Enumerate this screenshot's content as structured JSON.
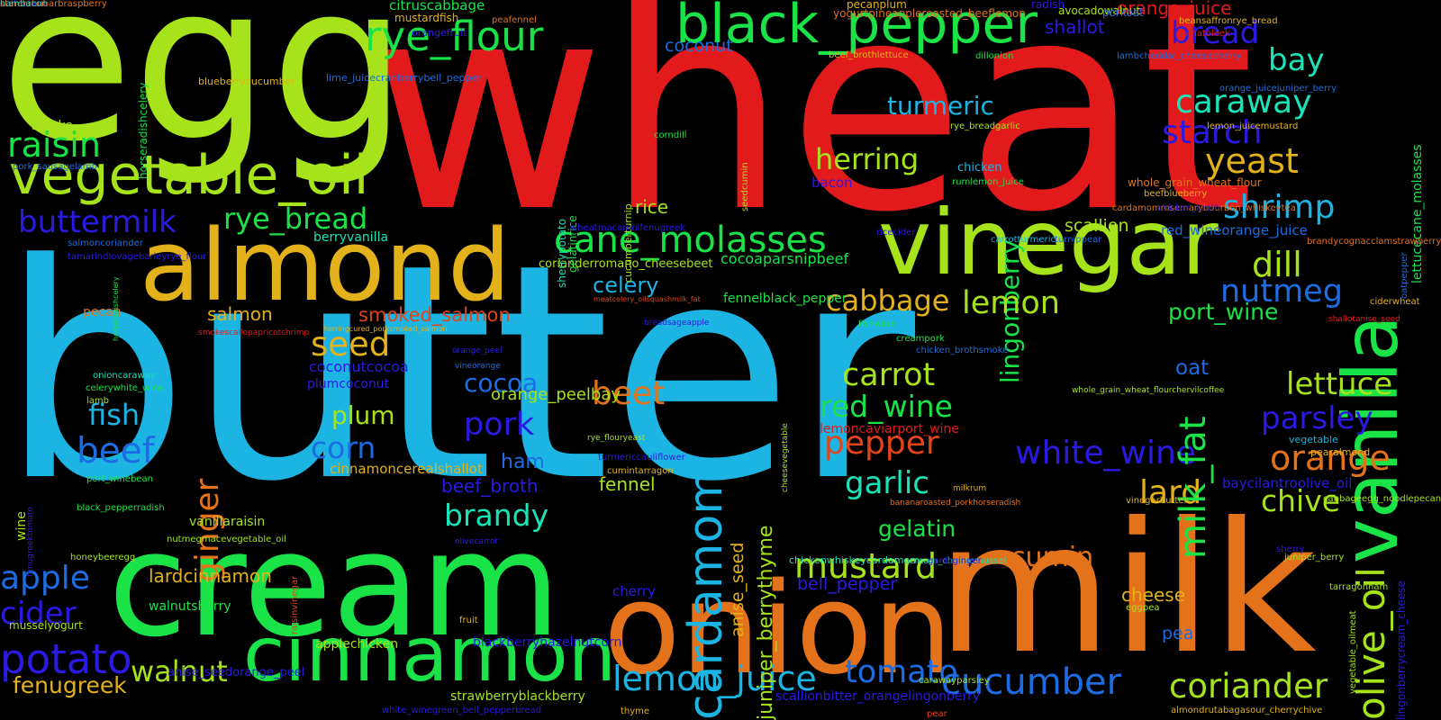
{
  "words": [
    {
      "text": "butter",
      "color": "#1cb4e3"
    },
    {
      "text": "wheat",
      "color": "#e31a1c"
    },
    {
      "text": "egg",
      "color": "#a6e31a"
    },
    {
      "text": "cream",
      "color": "#1ae348"
    },
    {
      "text": "milk",
      "color": "#e3721a"
    },
    {
      "text": "onion",
      "color": "#e3721a"
    },
    {
      "text": "almond",
      "color": "#e3b21a"
    },
    {
      "text": "vinegar",
      "color": "#a6e31a"
    },
    {
      "text": "vanilla",
      "color": "#1ae348"
    },
    {
      "text": "cinnamon",
      "color": "#1ae348"
    },
    {
      "text": "vegetable_oil",
      "color": "#a6e31a"
    },
    {
      "text": "black_pepper",
      "color": "#1ae348"
    },
    {
      "text": "cardamom",
      "color": "#1cb4e3"
    },
    {
      "text": "rye_flour",
      "color": "#1ae348"
    },
    {
      "text": "cane_molasses",
      "color": "#1ae348"
    },
    {
      "text": "raisin",
      "color": "#1ae348"
    },
    {
      "text": "buttermilk",
      "color": "#2b1ae3"
    },
    {
      "text": "rye_bread",
      "color": "#1ae348"
    },
    {
      "text": "bread",
      "color": "#2b1ae3"
    },
    {
      "text": "bay",
      "color": "#1ae3b8"
    },
    {
      "text": "caraway",
      "color": "#1ae3b8"
    },
    {
      "text": "starch",
      "color": "#2b1ae3"
    },
    {
      "text": "yeast",
      "color": "#e3b21a"
    },
    {
      "text": "shrimp",
      "color": "#1cb4e3"
    },
    {
      "text": "dill",
      "color": "#a6e31a"
    },
    {
      "text": "nutmeg",
      "color": "#1c6de3"
    },
    {
      "text": "lingonberry",
      "color": "#1ae348"
    },
    {
      "text": "turmeric",
      "color": "#1cb4e3"
    },
    {
      "text": "herring",
      "color": "#a6e31a"
    },
    {
      "text": "mustard",
      "color": "#a6e31a"
    },
    {
      "text": "cabbage",
      "color": "#e3b21a"
    },
    {
      "text": "lemon",
      "color": "#a6e31a"
    },
    {
      "text": "carrot",
      "color": "#a6e31a"
    },
    {
      "text": "red_wine",
      "color": "#1ae348"
    },
    {
      "text": "pepper",
      "color": "#e3441a"
    },
    {
      "text": "garlic",
      "color": "#1ae3b8"
    },
    {
      "text": "gelatin",
      "color": "#1ae348"
    },
    {
      "text": "white_wine",
      "color": "#2b1ae3"
    },
    {
      "text": "parsley",
      "color": "#2b1ae3"
    },
    {
      "text": "orange",
      "color": "#e3721a"
    },
    {
      "text": "lettuce",
      "color": "#a6e31a"
    },
    {
      "text": "lard",
      "color": "#e3b21a"
    },
    {
      "text": "chive",
      "color": "#a6e31a"
    },
    {
      "text": "olive_oil",
      "color": "#a6e31a"
    },
    {
      "text": "milk_fat",
      "color": "#1ae348"
    },
    {
      "text": "port_wine",
      "color": "#1ae348"
    },
    {
      "text": "oat",
      "color": "#1c6de3"
    },
    {
      "text": "coriander",
      "color": "#a6e31a"
    },
    {
      "text": "cucumber",
      "color": "#1c6de3"
    },
    {
      "text": "tomato",
      "color": "#1c6de3"
    },
    {
      "text": "lemon_juice",
      "color": "#1cb4e3"
    },
    {
      "text": "potato",
      "color": "#2b1ae3"
    },
    {
      "text": "walnut",
      "color": "#a6e31a"
    },
    {
      "text": "apple",
      "color": "#1c6de3"
    },
    {
      "text": "cider",
      "color": "#2b1ae3"
    },
    {
      "text": "fenugreek",
      "color": "#e3b21a"
    },
    {
      "text": "beef",
      "color": "#1c6de3"
    },
    {
      "text": "fish",
      "color": "#1cb4e3"
    },
    {
      "text": "ginger",
      "color": "#e3721a"
    },
    {
      "text": "salmon",
      "color": "#e3b21a"
    },
    {
      "text": "seed",
      "color": "#e3b21a"
    },
    {
      "text": "smoked_salmon",
      "color": "#e3441a"
    },
    {
      "text": "plum",
      "color": "#a6e31a"
    },
    {
      "text": "corn",
      "color": "#1c6de3"
    },
    {
      "text": "cocoa",
      "color": "#1c6de3"
    },
    {
      "text": "pork",
      "color": "#2b1ae3"
    },
    {
      "text": "beet",
      "color": "#e3721a"
    },
    {
      "text": "brandy",
      "color": "#1ae3b8"
    },
    {
      "text": "ham",
      "color": "#1c6de3"
    },
    {
      "text": "beef_broth",
      "color": "#2b1ae3"
    },
    {
      "text": "fennel",
      "color": "#a6e31a"
    },
    {
      "text": "celery",
      "color": "#1cb4e3"
    },
    {
      "text": "rice",
      "color": "#a6e31a"
    },
    {
      "text": "cumin",
      "color": "#e3721a"
    },
    {
      "text": "cheese",
      "color": "#e3b21a"
    },
    {
      "text": "pea",
      "color": "#1c6de3"
    },
    {
      "text": "bell_pepper",
      "color": "#2b1ae3"
    },
    {
      "text": "scallion",
      "color": "#a6e31a"
    },
    {
      "text": "shallot",
      "color": "#2b1ae3"
    },
    {
      "text": "coconut",
      "color": "#1c6de3"
    },
    {
      "text": "orange_juice",
      "color": "#e31a1c"
    },
    {
      "text": "lardcinnamon",
      "color": "#e3b21a"
    },
    {
      "text": "cherry",
      "color": "#2b1ae3"
    },
    {
      "text": "juniper_berrythyme",
      "color": "#a6e31a"
    },
    {
      "text": "anise_seed",
      "color": "#e3b21a"
    },
    {
      "text": "cocoaparsnipbeef",
      "color": "#1ae348"
    },
    {
      "text": "fennelblack_pepper",
      "color": "#1ae348"
    },
    {
      "text": "chicken",
      "color": "#1cb4e3"
    },
    {
      "text": "bacon",
      "color": "#2b1ae3"
    },
    {
      "text": "smoke",
      "color": "#a6e31a"
    },
    {
      "text": "coconutcocoa",
      "color": "#2b1ae3"
    },
    {
      "text": "plumcoconut",
      "color": "#2b1ae3"
    },
    {
      "text": "orange_peelbay",
      "color": "#a6e31a"
    },
    {
      "text": "pecan",
      "color": "#e3721a"
    },
    {
      "text": "berryvanilla",
      "color": "#1ae3b8"
    },
    {
      "text": "corianderromano_cheesebeet",
      "color": "#a6e31a"
    },
    {
      "text": "lemoncaviarport_wine",
      "color": "#e31a1c"
    },
    {
      "text": "red_wineorange_juice",
      "color": "#1c6de3"
    },
    {
      "text": "baycilantroolive_oil",
      "color": "#2b1ae3"
    },
    {
      "text": "vanillaraisin",
      "color": "#a6e31a"
    },
    {
      "text": "walnutsherry",
      "color": "#1ae348"
    },
    {
      "text": "musselyogurt",
      "color": "#a6e31a"
    },
    {
      "text": "applechicken",
      "color": "#a6e31a"
    },
    {
      "text": "blackberryhazelnutcorn",
      "color": "#2b1ae3"
    },
    {
      "text": "anise_seedorange_peel",
      "color": "#2b1ae3"
    },
    {
      "text": "strawberryblackberry",
      "color": "#a6e31a"
    },
    {
      "text": "scallionbitter_orangelingonberry",
      "color": "#2b1ae3"
    },
    {
      "text": "cinnamoncerealshallot",
      "color": "#e3b21a"
    },
    {
      "text": "citruscabbage",
      "color": "#1ae348"
    },
    {
      "text": "orangefruit",
      "color": "#2b1ae3"
    },
    {
      "text": "blueberrycucumber",
      "color": "#e3b21a"
    },
    {
      "text": "lime_juicecranberrybell_pepper",
      "color": "#1c6de3"
    },
    {
      "text": "horseradishcelery",
      "color": "#1ae348"
    },
    {
      "text": "mustardfish",
      "color": "#e3b21a"
    },
    {
      "text": "peafennel",
      "color": "#e3721a"
    },
    {
      "text": "pecanplum",
      "color": "#e3b21a"
    },
    {
      "text": "radish",
      "color": "#2b1ae3"
    },
    {
      "text": "yogurtpineappleroasted_beeflemon",
      "color": "#e3721a"
    },
    {
      "text": "avocadowalnut",
      "color": "#a6e31a"
    },
    {
      "text": "porkoat",
      "color": "#1c6de3"
    },
    {
      "text": "beansaffronrye_bread",
      "color": "#e3b21a"
    },
    {
      "text": "tomatoleek",
      "color": "#e31a1c"
    },
    {
      "text": "beef_brothlettuce",
      "color": "#e3b21a"
    },
    {
      "text": "dillonion",
      "color": "#1ae348"
    },
    {
      "text": "lambcheddar_cheesecherry",
      "color": "#1c6de3"
    },
    {
      "text": "orange_juicejuniper_berry",
      "color": "#1c6de3"
    },
    {
      "text": "lemon_juicemustard",
      "color": "#e3b21a"
    },
    {
      "text": "rye_breadgarlic",
      "color": "#a6e31a"
    },
    {
      "text": "lettucecane_molasses",
      "color": "#1ae348"
    },
    {
      "text": "oatpepper",
      "color": "#1c6de3"
    },
    {
      "text": "whole_grain_wheat_flour",
      "color": "#e3721a"
    },
    {
      "text": "beefblueberry",
      "color": "#e3b21a"
    },
    {
      "text": "seedcumin",
      "color": "#a6e31a"
    },
    {
      "text": "cardamomrosemarybourbon_whiskeytea",
      "color": "#e3721a"
    },
    {
      "text": "chicken_broth",
      "color": "#2b1ae3"
    },
    {
      "text": "rumlemon_juice",
      "color": "#1ae348"
    },
    {
      "text": "turnippear",
      "color": "#1c6de3"
    },
    {
      "text": "carrotturmeric",
      "color": "#1cb4e3"
    },
    {
      "text": "brandycognacclamstrawberry",
      "color": "#e3721a"
    },
    {
      "text": "ricecider",
      "color": "#2b1ae3"
    },
    {
      "text": "corndill",
      "color": "#1ae348"
    },
    {
      "text": "sherrypotato",
      "color": "#1ae3b8"
    },
    {
      "text": "gelatinrice",
      "color": "#1ae348"
    },
    {
      "text": "cucumberturnip",
      "color": "#a6e31a"
    },
    {
      "text": "wheatmacaronifenugreek",
      "color": "#2b1ae3"
    },
    {
      "text": "salmoncoriander",
      "color": "#1c6de3"
    },
    {
      "text": "tamarindlovagebarleyrye_flour",
      "color": "#2b1ae3"
    },
    {
      "text": "horseradishcelery",
      "color": "#1ae348"
    },
    {
      "text": "pork_sausagelamb",
      "color": "#1c6de3"
    },
    {
      "text": "black_pepperradish",
      "color": "#1ae348"
    },
    {
      "text": "wine",
      "color": "#a6e31a"
    },
    {
      "text": "smokescallopapricotshrimp",
      "color": "#e31a1c"
    },
    {
      "text": "herringcured_porksmoked_salmon",
      "color": "#e3b21a"
    },
    {
      "text": "meatcelery_oilsquashmilk_fat",
      "color": "#e3441a"
    },
    {
      "text": "breadsageapple",
      "color": "#2b1ae3"
    },
    {
      "text": "orange_peel",
      "color": "#2b1ae3"
    },
    {
      "text": "vineorange",
      "color": "#1c6de3"
    },
    {
      "text": "fishwine",
      "color": "#1ae348"
    },
    {
      "text": "creampork",
      "color": "#1ae348"
    },
    {
      "text": "chicken_brothsmoke",
      "color": "#1c6de3"
    },
    {
      "text": "whole_grain_wheat_flourchervilcoffee",
      "color": "#a6e31a"
    },
    {
      "text": "shallotanise_seed",
      "color": "#e31a1c"
    },
    {
      "text": "ciderwheat",
      "color": "#e3b21a"
    },
    {
      "text": "onioncaraway",
      "color": "#1ae3b8"
    },
    {
      "text": "celerywhite_wine",
      "color": "#1ae348"
    },
    {
      "text": "lamb",
      "color": "#a6e31a"
    },
    {
      "text": "rye_flouryeast",
      "color": "#a6e31a"
    },
    {
      "text": "cheesevegetable",
      "color": "#a6e31a"
    },
    {
      "text": "port_winebean",
      "color": "#1ae348"
    },
    {
      "text": "fenugreektomato",
      "color": "#2b1ae3"
    },
    {
      "text": "turmericcauliflower",
      "color": "#2b1ae3"
    },
    {
      "text": "cumintarragon",
      "color": "#e3b21a"
    },
    {
      "text": "bananaroasted_porkhorseradish",
      "color": "#e3721a"
    },
    {
      "text": "vinegarbutter",
      "color": "#e3b21a"
    },
    {
      "text": "milkrum",
      "color": "#e3b21a"
    },
    {
      "text": "nutmegmacevegetable_oil",
      "color": "#a6e31a"
    },
    {
      "text": "olivecarrot",
      "color": "#2b1ae3"
    },
    {
      "text": "honeybeeregg",
      "color": "#a6e31a"
    },
    {
      "text": "chickenwhiskeycardamom",
      "color": "#1ae3b8"
    },
    {
      "text": "cream_cheesemussel",
      "color": "#1ae3b8"
    },
    {
      "text": "garlicginger",
      "color": "#2b1ae3"
    },
    {
      "text": "raisinvinegar",
      "color": "#e3441a"
    },
    {
      "text": "fruit",
      "color": "#e3b21a"
    },
    {
      "text": "eggpea",
      "color": "#a6e31a"
    },
    {
      "text": "juniper_berry",
      "color": "#a6e31a"
    },
    {
      "text": "sherry",
      "color": "#2b1ae3"
    },
    {
      "text": "vegetable_oilmeat",
      "color": "#a6e31a"
    },
    {
      "text": "tarragonham",
      "color": "#a6e31a"
    },
    {
      "text": "cabbageegg_noodlepecan",
      "color": "#a6e31a"
    },
    {
      "text": "pearalmond",
      "color": "#e3b21a"
    },
    {
      "text": "vegetable",
      "color": "#1cb4e3"
    },
    {
      "text": "lingonberrycream_cheese",
      "color": "#2b1ae3"
    },
    {
      "text": "almondrutabagasour_cherrychive",
      "color": "#e3b21a"
    },
    {
      "text": "carawayparsley",
      "color": "#a6e31a"
    },
    {
      "text": "white_winegreen_bell_pepperbread",
      "color": "#2b1ae3"
    },
    {
      "text": "thyme",
      "color": "#e3b21a"
    },
    {
      "text": "pear",
      "color": "#e3441a"
    },
    {
      "text": "coffeelard",
      "color": "#2b1ae3"
    },
    {
      "text": "starchrhubarbraspberry",
      "color": "#e3721a"
    },
    {
      "text": "hambacon",
      "color": "#1ae3b8"
    }
  ]
}
